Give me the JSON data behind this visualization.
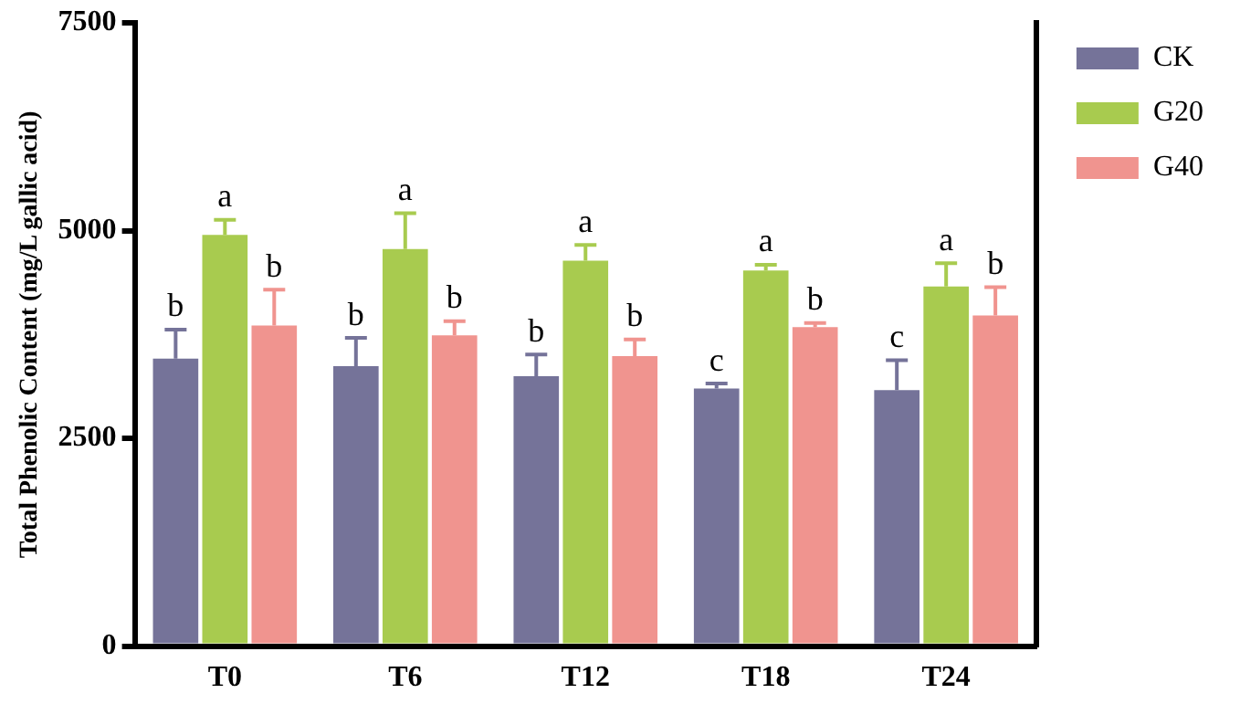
{
  "chart_data": {
    "type": "bar",
    "ylabel": "Total Phenolic Content (mg/L gallic acid)",
    "categories": [
      "T0",
      "T6",
      "T12",
      "T18",
      "T24"
    ],
    "ylim": [
      0,
      7500
    ],
    "yticks": [
      0,
      2500,
      5000,
      7500
    ],
    "grid": false,
    "legend": "top right",
    "series": [
      {
        "name": "CK",
        "color": "#757399",
        "values": [
          3460,
          3370,
          3250,
          3100,
          3080
        ],
        "errors": [
          [
            3460,
            3810
          ],
          [
            3370,
            3710
          ],
          [
            3250,
            3510
          ],
          [
            3100,
            3160
          ],
          [
            3080,
            3440
          ]
        ],
        "value_labels": [
          "b",
          "b",
          "b",
          "c",
          "c"
        ]
      },
      {
        "name": "G20",
        "color": "#a8cb4f",
        "values": [
          4950,
          4780,
          4640,
          4520,
          4330
        ],
        "errors": [
          [
            4950,
            5130
          ],
          [
            4780,
            5210
          ],
          [
            4640,
            4830
          ],
          [
            4520,
            4590
          ],
          [
            4330,
            4610
          ]
        ],
        "value_labels": [
          "a",
          "a",
          "a",
          "a",
          "a"
        ]
      },
      {
        "name": "G40",
        "color": "#f0948f",
        "values": [
          3860,
          3740,
          3490,
          3840,
          3980
        ],
        "errors": [
          [
            3860,
            4290
          ],
          [
            3740,
            3910
          ],
          [
            3490,
            3690
          ],
          [
            3840,
            3890
          ],
          [
            3980,
            4320
          ]
        ],
        "value_labels": [
          "b",
          "b",
          "b",
          "b",
          "b"
        ]
      }
    ]
  }
}
